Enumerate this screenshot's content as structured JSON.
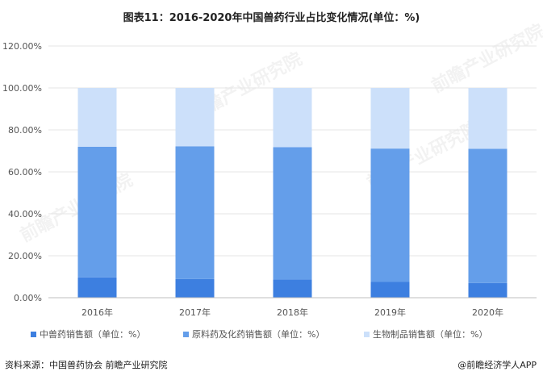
{
  "title": "图表11：2016-2020年中国兽药行业占比变化情况(单位：%)",
  "footer": {
    "source": "资料来源：中国兽药协会 前瞻产业研究院",
    "credit": "@前瞻经济学人APP"
  },
  "watermark": "前瞻产业研究院",
  "colors": {
    "series1": "#3D7FE0",
    "series2": "#649EEA",
    "series3": "#CCE0FA",
    "grid": "#E6E6E6",
    "axis": "#BFBFBF"
  },
  "chart_data": {
    "type": "bar",
    "stacked": true,
    "categories": [
      "2016年",
      "2017年",
      "2018年",
      "2019年",
      "2020年"
    ],
    "series": [
      {
        "name": "中兽药销售额（单位：%）",
        "values": [
          9.7,
          8.9,
          8.7,
          7.5,
          7.0
        ]
      },
      {
        "name": "原料药及化药销售额（单位：%）",
        "values": [
          62.3,
          63.3,
          63.1,
          63.6,
          64.0
        ]
      },
      {
        "name": "生物制品销售额（单位：%）",
        "values": [
          28.0,
          27.8,
          28.2,
          28.9,
          29.0
        ]
      }
    ],
    "ylim": [
      0,
      120
    ],
    "yticks": [
      "0.00%",
      "20.00%",
      "40.00%",
      "60.00%",
      "80.00%",
      "100.00%",
      "120.00%"
    ],
    "grid": true,
    "legend_position": "bottom"
  }
}
